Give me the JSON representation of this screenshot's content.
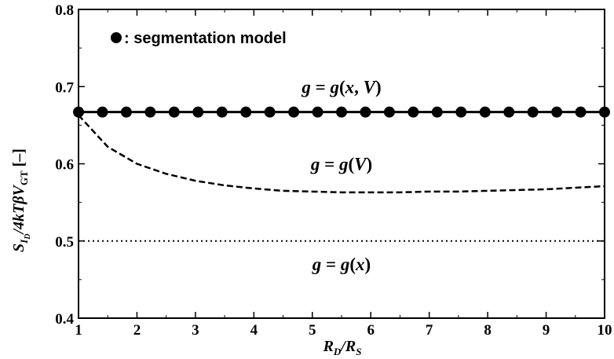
{
  "chart_data": {
    "type": "line",
    "xlabel": "R_D/R_S",
    "ylabel": "S_I_D/4kTβV_GT [–]",
    "xlim": [
      1,
      10
    ],
    "ylim": [
      0.4,
      0.8
    ],
    "xticks": [
      1,
      2,
      3,
      4,
      5,
      6,
      7,
      8,
      9,
      10
    ],
    "yticks": [
      0.4,
      0.5,
      0.6,
      0.7,
      0.8
    ],
    "legend": {
      "marker": "filled-circle",
      "text": ": segmentation model",
      "position": "top-left"
    },
    "series": [
      {
        "label": "g = g(x, V)",
        "style": "solid",
        "x": [
          1,
          10
        ],
        "y": [
          0.667,
          0.667
        ]
      },
      {
        "label": "g = g(V)",
        "style": "dashed",
        "x": [
          1.0,
          1.5,
          2.0,
          2.5,
          3.0,
          3.5,
          4.0,
          4.5,
          5.0,
          5.5,
          6.0,
          6.5,
          7.0,
          7.5,
          8.0,
          8.5,
          9.0,
          9.5,
          10.0
        ],
        "y": [
          0.663,
          0.622,
          0.6,
          0.587,
          0.578,
          0.572,
          0.568,
          0.565,
          0.564,
          0.563,
          0.563,
          0.563,
          0.564,
          0.564,
          0.565,
          0.566,
          0.567,
          0.569,
          0.571
        ]
      },
      {
        "label": "g = g(x)",
        "style": "dotted",
        "x": [
          1,
          10
        ],
        "y": [
          0.5,
          0.5
        ]
      },
      {
        "label": "segmentation model",
        "style": "markers",
        "x": [
          1.0,
          1.409,
          1.818,
          2.227,
          2.636,
          3.045,
          3.455,
          3.864,
          4.273,
          4.682,
          5.091,
          5.5,
          5.909,
          6.318,
          6.727,
          7.136,
          7.545,
          7.955,
          8.364,
          8.773,
          9.182,
          9.591,
          10.0
        ],
        "y": [
          0.667,
          0.667,
          0.667,
          0.667,
          0.667,
          0.667,
          0.667,
          0.667,
          0.667,
          0.667,
          0.667,
          0.667,
          0.667,
          0.667,
          0.667,
          0.667,
          0.667,
          0.667,
          0.667,
          0.667,
          0.667,
          0.667,
          0.667
        ]
      }
    ],
    "annotations": [
      {
        "pre": "g",
        "eq": " = ",
        "fn": "g",
        "args": [
          "x",
          ", ",
          "V"
        ],
        "x": 5.5,
        "y": 0.7
      },
      {
        "pre": "g",
        "eq": " = ",
        "fn": "g",
        "args": [
          "V"
        ],
        "x": 5.5,
        "y": 0.6
      },
      {
        "pre": "g",
        "eq": " = ",
        "fn": "g",
        "args": [
          "x"
        ],
        "x": 5.5,
        "y": 0.47
      }
    ]
  }
}
